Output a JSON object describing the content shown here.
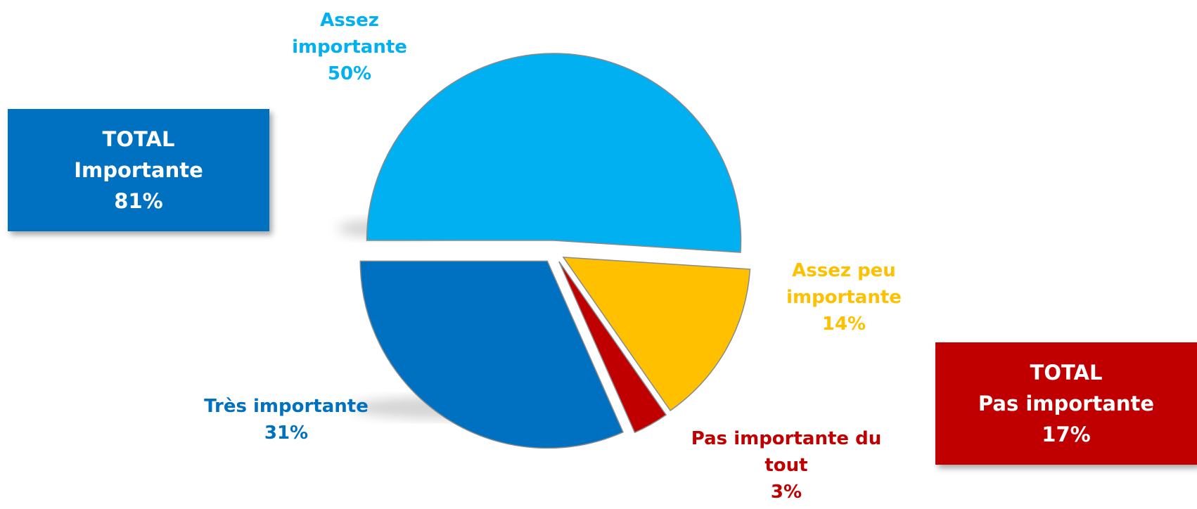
{
  "chart_data": {
    "type": "pie",
    "categories": [
      "Assez importante",
      "Assez peu importante",
      "Pas importante du tout",
      "Très importante"
    ],
    "values": [
      50,
      14,
      3,
      31
    ],
    "value_labels": [
      "50%",
      "14%",
      "3%",
      "31%"
    ],
    "colors": [
      "#00b0f0",
      "#ffc000",
      "#c00000",
      "#0070c0"
    ],
    "annotations": [
      {
        "title": "TOTAL",
        "label": "Importante",
        "value": "81%",
        "color": "#0070c0"
      },
      {
        "title": "TOTAL",
        "label": "Pas importante",
        "value": "17%",
        "color": "#c00000"
      }
    ]
  }
}
